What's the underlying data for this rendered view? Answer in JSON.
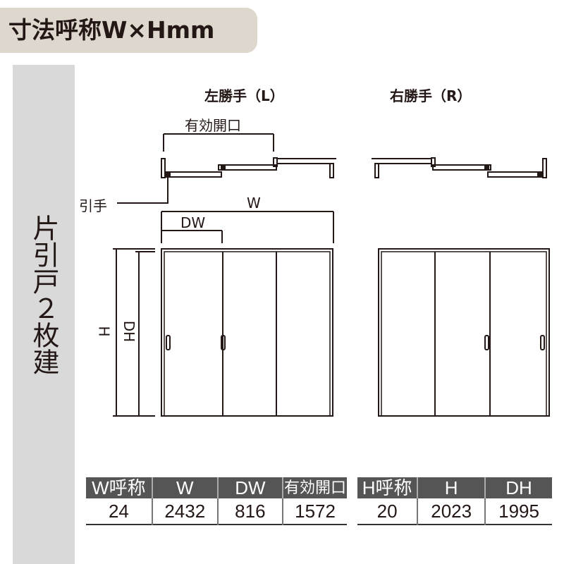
{
  "title": "寸法呼称W×Hmm",
  "sidebar": {
    "label": "片引戸２枚建"
  },
  "diagram": {
    "left_label": "左勝手（L）",
    "right_label": "右勝手（R）",
    "effective_opening": "有効開口",
    "handle": "引手",
    "w": "W",
    "dw": "DW",
    "h": "H",
    "dh": "DH"
  },
  "table_w": {
    "headers": [
      "W呼称",
      "W",
      "DW",
      "有効開口"
    ],
    "values": [
      "24",
      "2432",
      "816",
      "1572"
    ]
  },
  "table_h": {
    "headers": [
      "H呼称",
      "H",
      "DH"
    ],
    "values": [
      "20",
      "2023",
      "1995"
    ]
  }
}
